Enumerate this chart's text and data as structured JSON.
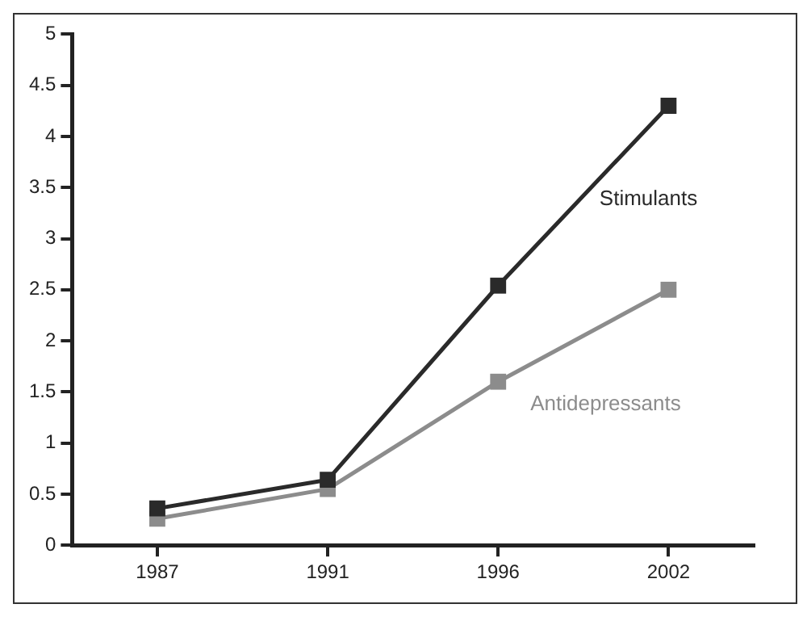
{
  "chart_data": {
    "type": "line",
    "categories": [
      "1987",
      "1991",
      "1996",
      "2002"
    ],
    "series": [
      {
        "name": "Stimulants",
        "color": "#2a2a2a",
        "values": [
          0.36,
          0.64,
          2.54,
          4.3
        ]
      },
      {
        "name": "Antidepressants",
        "color": "#8c8c8c",
        "values": [
          0.26,
          0.55,
          1.6,
          2.5
        ]
      }
    ],
    "ylim": [
      0,
      5
    ],
    "yticks": [
      0,
      0.5,
      1,
      1.5,
      2,
      2.5,
      3,
      3.5,
      4,
      4.5,
      5
    ],
    "grid": false,
    "legend": false,
    "marker": "square",
    "line_style": "solid"
  }
}
